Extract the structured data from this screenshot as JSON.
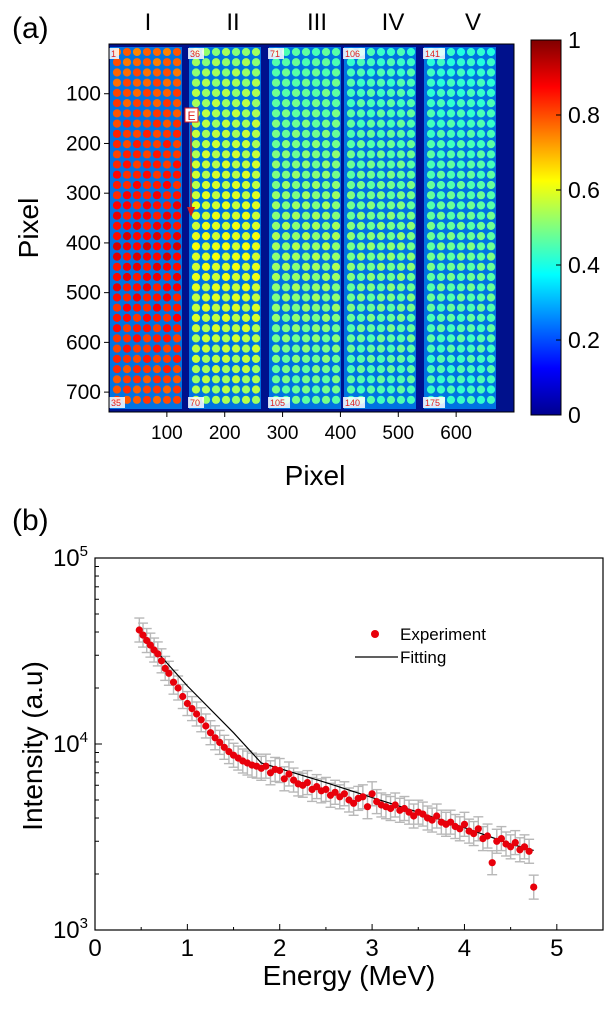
{
  "chart_data": [
    {
      "panel_label": "(a)",
      "type": "heatmap",
      "xlabel": "Pixel",
      "ylabel": "Pixel",
      "x_ticks": [
        "100",
        "200",
        "300",
        "400",
        "500",
        "600"
      ],
      "y_ticks": [
        "100",
        "200",
        "300",
        "400",
        "500",
        "600",
        "700"
      ],
      "x_range": [
        0,
        700
      ],
      "y_range": [
        0,
        740
      ],
      "column_labels": [
        "I",
        "II",
        "III",
        "IV",
        "V"
      ],
      "colorbar": {
        "min": 0,
        "max": 1,
        "ticks": [
          "0",
          "0.2",
          "0.4",
          "0.6",
          "0.8",
          "1"
        ]
      },
      "spots": {
        "rows": 35,
        "columns_per_group": 7
      },
      "group_relative_intensity": [
        0.92,
        0.62,
        0.55,
        0.52,
        0.5
      ],
      "spot_numbers": [
        {
          "group": 0,
          "top": "1",
          "bottom": "35"
        },
        {
          "group": 1,
          "top": "36",
          "bottom": "70"
        },
        {
          "group": 2,
          "top": "71",
          "bottom": "105"
        },
        {
          "group": 3,
          "top": "106",
          "bottom": "140"
        },
        {
          "group": 4,
          "top": "141",
          "bottom": "175"
        }
      ],
      "arrow_label": "E",
      "colors": {
        "label_text": "#e0201e",
        "background": "#00118c"
      }
    },
    {
      "panel_label": "(b)",
      "type": "scatter",
      "xlabel": "Energy (MeV)",
      "ylabel": "Intensity (a.u)",
      "xlim": [
        0,
        5.5
      ],
      "ylim": [
        1000,
        100000
      ],
      "y_scale": "log",
      "x_ticks": [
        "0",
        "1",
        "2",
        "3",
        "4",
        "5"
      ],
      "y_tick_values": [
        1000,
        10000,
        100000
      ],
      "y_tick_base": "10",
      "y_tick_exponents": [
        "3",
        "4",
        "5"
      ],
      "legend": {
        "position": "top-right",
        "entries": [
          "Experiment",
          "Fitting"
        ]
      },
      "series": [
        {
          "name": "Experiment",
          "marker": "circle",
          "color": "#e8000b",
          "error_bar_color": "#b8b8b8",
          "x": [
            0.48,
            0.52,
            0.56,
            0.6,
            0.64,
            0.68,
            0.72,
            0.76,
            0.8,
            0.85,
            0.9,
            0.95,
            1.0,
            1.05,
            1.1,
            1.15,
            1.2,
            1.25,
            1.3,
            1.35,
            1.4,
            1.45,
            1.5,
            1.55,
            1.6,
            1.65,
            1.7,
            1.75,
            1.8,
            1.85,
            1.9,
            1.95,
            2.0,
            2.05,
            2.1,
            2.15,
            2.2,
            2.25,
            2.3,
            2.35,
            2.4,
            2.45,
            2.5,
            2.55,
            2.6,
            2.65,
            2.7,
            2.75,
            2.8,
            2.85,
            2.9,
            2.95,
            3.0,
            3.05,
            3.1,
            3.15,
            3.2,
            3.25,
            3.3,
            3.35,
            3.4,
            3.45,
            3.5,
            3.55,
            3.6,
            3.65,
            3.7,
            3.75,
            3.8,
            3.85,
            3.9,
            3.95,
            4.0,
            4.05,
            4.1,
            4.15,
            4.2,
            4.25,
            4.3,
            4.35,
            4.4,
            4.45,
            4.5,
            4.55,
            4.6,
            4.65,
            4.7,
            4.75
          ],
          "y": [
            41000,
            38500,
            36000,
            34000,
            32000,
            30500,
            28000,
            25500,
            24000,
            21500,
            20000,
            18000,
            16500,
            15500,
            14500,
            13500,
            12500,
            11500,
            10800,
            10200,
            9600,
            9100,
            8700,
            8400,
            8100,
            7900,
            7700,
            7600,
            7400,
            7600,
            7000,
            7300,
            7200,
            6500,
            6900,
            6400,
            6100,
            6000,
            6200,
            5700,
            5900,
            5600,
            5700,
            5300,
            5500,
            5200,
            5400,
            5000,
            4800,
            5100,
            5200,
            4600,
            5400,
            4900,
            4700,
            4600,
            4500,
            4700,
            4400,
            4500,
            4300,
            4100,
            4300,
            4200,
            4000,
            3900,
            4100,
            3800,
            3700,
            3800,
            3600,
            3500,
            3700,
            3400,
            3300,
            3500,
            3100,
            3200,
            2300,
            3000,
            3100,
            2900,
            2800,
            2950,
            2700,
            2800,
            2650,
            1700
          ]
        },
        {
          "name": "Fitting",
          "type": "line",
          "color": "#000000",
          "x": [
            0.48,
            1.0,
            1.5,
            1.8,
            2.5,
            3.0,
            3.5,
            4.0,
            4.5,
            4.75
          ],
          "y": [
            40000,
            20500,
            11500,
            7900,
            6200,
            5150,
            4300,
            3550,
            2900,
            2680
          ]
        }
      ]
    }
  ]
}
